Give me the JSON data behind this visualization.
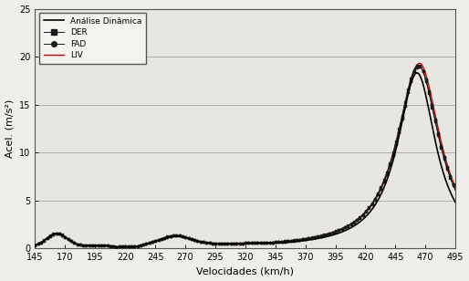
{
  "title": "",
  "xlabel": "Velocidades (km/h)",
  "ylabel": "Acel. (m/s²)",
  "xlim": [
    145,
    495
  ],
  "ylim": [
    0,
    25
  ],
  "xticks": [
    145,
    170,
    195,
    220,
    245,
    270,
    295,
    320,
    345,
    370,
    395,
    420,
    445,
    470,
    495
  ],
  "yticks": [
    0,
    5,
    10,
    15,
    20,
    25
  ],
  "legend_entries": [
    "Análise Dinâmica",
    "DER",
    "FAD",
    "LIV"
  ],
  "line_colors": [
    "#000000",
    "#000000",
    "#000000",
    "#cc0000"
  ],
  "background_color": "#f0eeea",
  "plot_bg_color": "#e8e6e0",
  "grid_color": "#999999"
}
